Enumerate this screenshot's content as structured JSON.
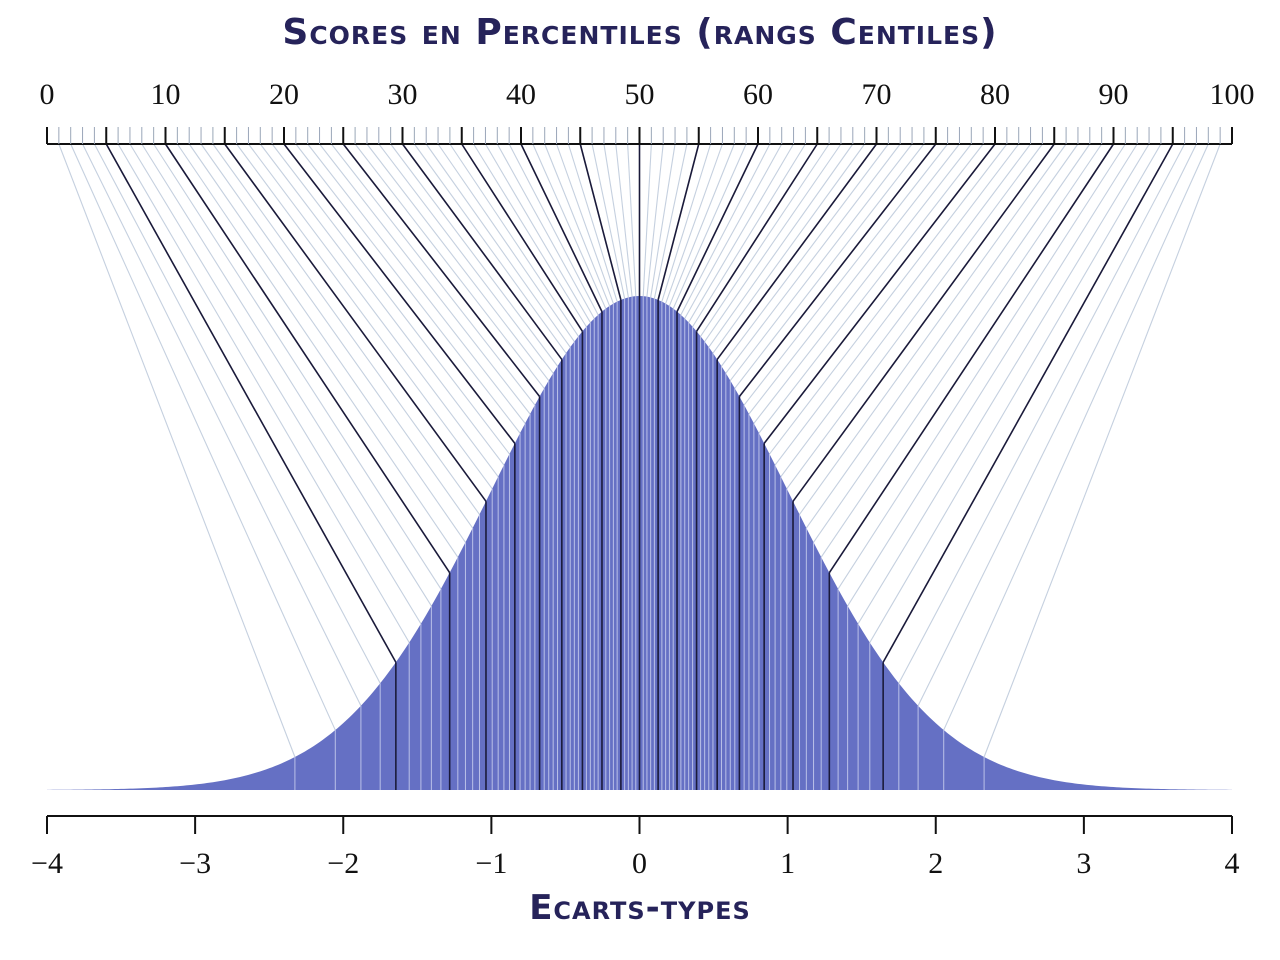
{
  "titles": {
    "top": "Scores en Percentiles (rangs Centiles)",
    "bottom": "Ecarts-types"
  },
  "chart_data": {
    "type": "area",
    "title": "Scores en Percentiles (rangs Centiles)",
    "xlabel": "Ecarts-types",
    "distribution": "standard normal",
    "xlim": [
      -4,
      4
    ],
    "x_ticks": [
      "−4",
      "−3",
      "−2",
      "−1",
      "0",
      "1",
      "2",
      "3",
      "4"
    ],
    "x_tick_values": [
      -4,
      -3,
      -2,
      -1,
      0,
      1,
      2,
      3,
      4
    ],
    "percentile_axis": {
      "range": [
        0,
        100
      ],
      "labels": [
        "0",
        "10",
        "20",
        "30",
        "40",
        "50",
        "60",
        "70",
        "80",
        "90",
        "100"
      ],
      "label_values": [
        0,
        10,
        20,
        30,
        40,
        50,
        60,
        70,
        80,
        90,
        100
      ],
      "major_step": 5,
      "minor_step": 1
    },
    "mapped_percentiles_minor": [
      1,
      2,
      3,
      4,
      6,
      7,
      8,
      9,
      11,
      12,
      13,
      14,
      16,
      17,
      18,
      19,
      21,
      22,
      23,
      24,
      26,
      27,
      28,
      29,
      31,
      32,
      33,
      34,
      36,
      37,
      38,
      39,
      41,
      42,
      43,
      44,
      46,
      47,
      48,
      49,
      51,
      52,
      53,
      54,
      56,
      57,
      58,
      59,
      61,
      62,
      63,
      64,
      66,
      67,
      68,
      69,
      71,
      72,
      73,
      74,
      76,
      77,
      78,
      79,
      81,
      82,
      83,
      84,
      86,
      87,
      88,
      89,
      91,
      92,
      93,
      94,
      96,
      97,
      98,
      99
    ],
    "mapped_percentiles_major": [
      5,
      10,
      15,
      20,
      25,
      30,
      35,
      40,
      45,
      50,
      55,
      60,
      65,
      70,
      75,
      80,
      85,
      90,
      95
    ],
    "colors": {
      "fill": "#6570c4",
      "minor_line": "#c5d0df",
      "major_line": "#1a1a3a",
      "title": "#26235a"
    },
    "grid": false,
    "legend": "none"
  }
}
